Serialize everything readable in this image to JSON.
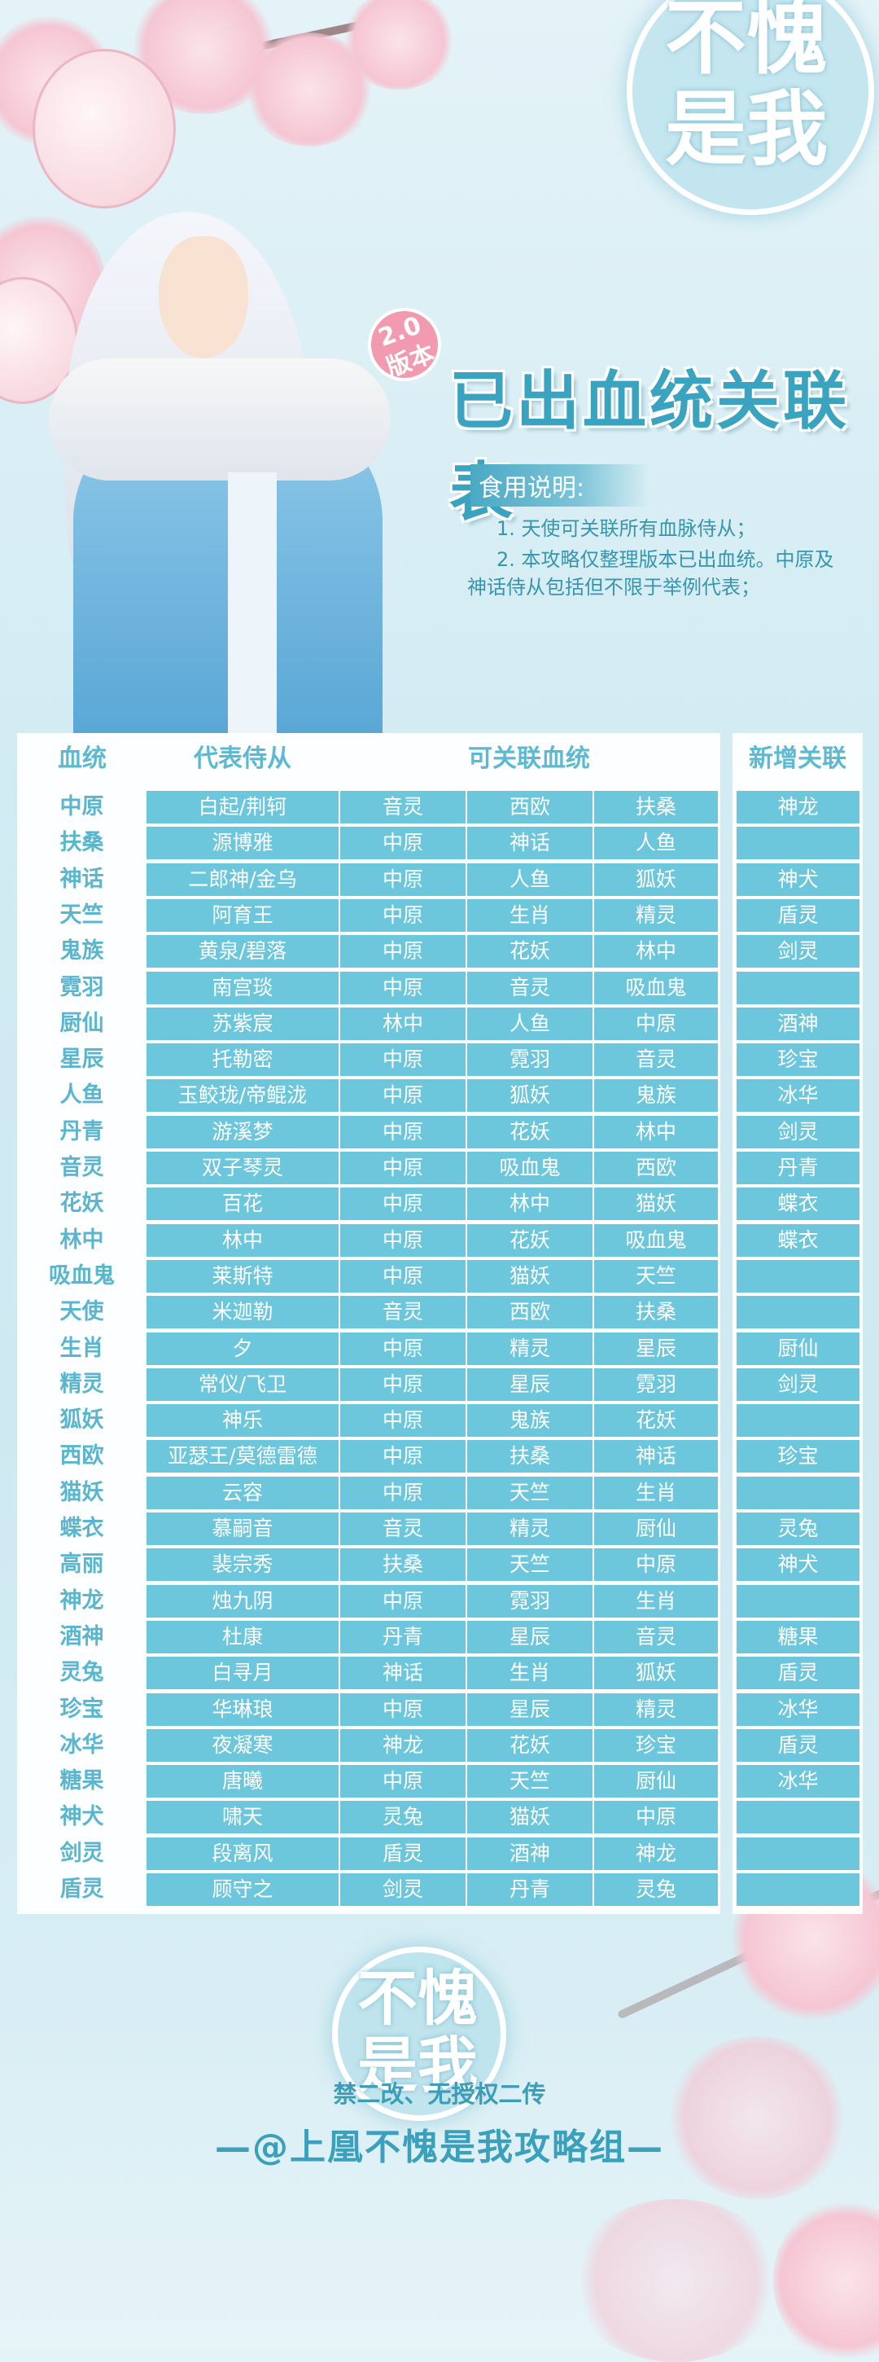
{
  "header": {
    "badge_line1": "2.0",
    "badge_line2": "版本",
    "title": "已出血统关联表",
    "notes_label": "食用说明:",
    "notes": [
      "1. 天使可关联所有血脉侍从；",
      "2. 本攻略仅整理版本已出血统。中原及神话侍从包括但不限于举例代表；"
    ]
  },
  "logo_top": {
    "line1": "不愧",
    "line2": "是我"
  },
  "table": {
    "columns": {
      "lineage": "血统",
      "representative": "代表侍从",
      "related": "可关联血统",
      "new": "新增关联"
    },
    "colors": {
      "cell": "#6cc6dc",
      "header_text": "#5cb9d2",
      "accent": "#3aa3c0"
    },
    "rows": [
      {
        "lineage": "中原",
        "rep": "白起/荆轲",
        "related": [
          "音灵",
          "西欧",
          "扶桑"
        ],
        "new": "神龙"
      },
      {
        "lineage": "扶桑",
        "rep": "源博雅",
        "related": [
          "中原",
          "神话",
          "人鱼"
        ],
        "new": ""
      },
      {
        "lineage": "神话",
        "rep": "二郎神/金乌",
        "related": [
          "中原",
          "人鱼",
          "狐妖"
        ],
        "new": "神犬"
      },
      {
        "lineage": "天竺",
        "rep": "阿育王",
        "related": [
          "中原",
          "生肖",
          "精灵"
        ],
        "new": "盾灵"
      },
      {
        "lineage": "鬼族",
        "rep": "黄泉/碧落",
        "related": [
          "中原",
          "花妖",
          "林中"
        ],
        "new": "剑灵"
      },
      {
        "lineage": "霓羽",
        "rep": "南宫琰",
        "related": [
          "中原",
          "音灵",
          "吸血鬼"
        ],
        "new": ""
      },
      {
        "lineage": "厨仙",
        "rep": "苏紫宸",
        "related": [
          "林中",
          "人鱼",
          "中原"
        ],
        "new": "酒神"
      },
      {
        "lineage": "星辰",
        "rep": "托勒密",
        "related": [
          "中原",
          "霓羽",
          "音灵"
        ],
        "new": "珍宝"
      },
      {
        "lineage": "人鱼",
        "rep": "玉鲛珑/帝鲲泷",
        "related": [
          "中原",
          "狐妖",
          "鬼族"
        ],
        "new": "冰华"
      },
      {
        "lineage": "丹青",
        "rep": "游溪梦",
        "related": [
          "中原",
          "花妖",
          "林中"
        ],
        "new": "剑灵"
      },
      {
        "lineage": "音灵",
        "rep": "双子琴灵",
        "related": [
          "中原",
          "吸血鬼",
          "西欧"
        ],
        "new": "丹青"
      },
      {
        "lineage": "花妖",
        "rep": "百花",
        "related": [
          "中原",
          "林中",
          "猫妖"
        ],
        "new": "蝶衣"
      },
      {
        "lineage": "林中",
        "rep": "林中",
        "related": [
          "中原",
          "花妖",
          "吸血鬼"
        ],
        "new": "蝶衣"
      },
      {
        "lineage": "吸血鬼",
        "rep": "莱斯特",
        "related": [
          "中原",
          "猫妖",
          "天竺"
        ],
        "new": ""
      },
      {
        "lineage": "天使",
        "rep": "米迦勒",
        "related": [
          "音灵",
          "西欧",
          "扶桑"
        ],
        "new": ""
      },
      {
        "lineage": "生肖",
        "rep": "夕",
        "related": [
          "中原",
          "精灵",
          "星辰"
        ],
        "new": "厨仙"
      },
      {
        "lineage": "精灵",
        "rep": "常仪/飞卫",
        "related": [
          "中原",
          "星辰",
          "霓羽"
        ],
        "new": "剑灵"
      },
      {
        "lineage": "狐妖",
        "rep": "神乐",
        "related": [
          "中原",
          "鬼族",
          "花妖"
        ],
        "new": ""
      },
      {
        "lineage": "西欧",
        "rep": "亚瑟王/莫德雷德",
        "related": [
          "中原",
          "扶桑",
          "神话"
        ],
        "new": "珍宝"
      },
      {
        "lineage": "猫妖",
        "rep": "云容",
        "related": [
          "中原",
          "天竺",
          "生肖"
        ],
        "new": ""
      },
      {
        "lineage": "蝶衣",
        "rep": "慕嗣音",
        "related": [
          "音灵",
          "精灵",
          "厨仙"
        ],
        "new": "灵兔"
      },
      {
        "lineage": "高丽",
        "rep": "裴宗秀",
        "related": [
          "扶桑",
          "天竺",
          "中原"
        ],
        "new": "神犬"
      },
      {
        "lineage": "神龙",
        "rep": "烛九阴",
        "related": [
          "中原",
          "霓羽",
          "生肖"
        ],
        "new": ""
      },
      {
        "lineage": "酒神",
        "rep": "杜康",
        "related": [
          "丹青",
          "星辰",
          "音灵"
        ],
        "new": "糖果"
      },
      {
        "lineage": "灵兔",
        "rep": "白寻月",
        "related": [
          "神话",
          "生肖",
          "狐妖"
        ],
        "new": "盾灵"
      },
      {
        "lineage": "珍宝",
        "rep": "华琳琅",
        "related": [
          "中原",
          "星辰",
          "精灵"
        ],
        "new": "冰华"
      },
      {
        "lineage": "冰华",
        "rep": "夜凝寒",
        "related": [
          "神龙",
          "花妖",
          "珍宝"
        ],
        "new": "盾灵"
      },
      {
        "lineage": "糖果",
        "rep": "唐曦",
        "related": [
          "中原",
          "天竺",
          "厨仙"
        ],
        "new": "冰华"
      },
      {
        "lineage": "神犬",
        "rep": "啸天",
        "related": [
          "灵兔",
          "猫妖",
          "中原"
        ],
        "new": ""
      },
      {
        "lineage": "剑灵",
        "rep": "段离风",
        "related": [
          "盾灵",
          "酒神",
          "神龙"
        ],
        "new": ""
      },
      {
        "lineage": "盾灵",
        "rep": "顾守之",
        "related": [
          "剑灵",
          "丹青",
          "灵兔"
        ],
        "new": ""
      }
    ]
  },
  "footer": {
    "logo_line1": "不愧",
    "logo_line2": "是我",
    "notice": "禁二改、无授权二传",
    "credit": "—@上凰不愧是我攻略组—"
  }
}
